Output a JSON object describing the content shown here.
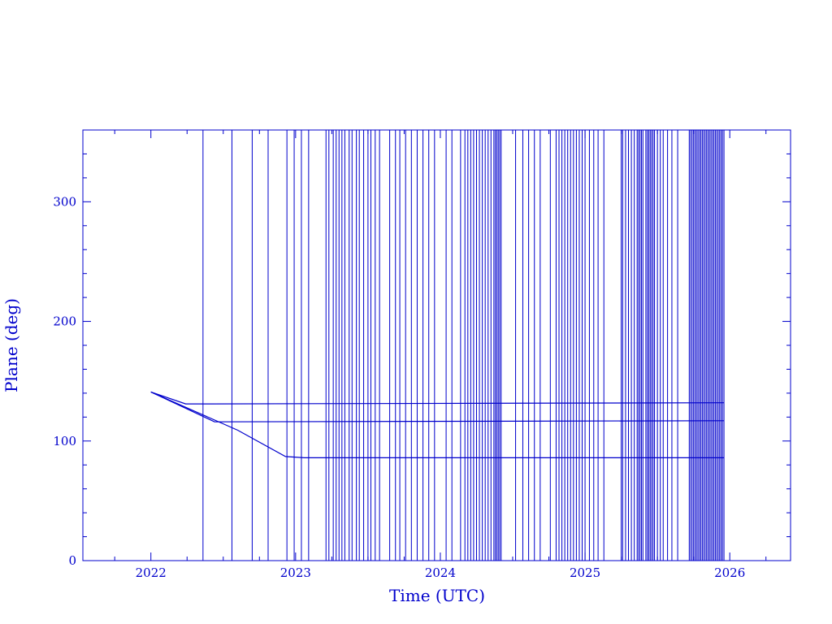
{
  "chart_data": {
    "type": "line",
    "title": "",
    "xlabel": "Time (UTC)",
    "ylabel": "Plane (deg)",
    "xlim": [
      2021.53,
      2026.42
    ],
    "ylim": [
      0,
      360
    ],
    "x_ticks": [
      2022,
      2023,
      2024,
      2025,
      2026
    ],
    "y_ticks": [
      0,
      100,
      200,
      300
    ],
    "x_tick_labels": [
      "2022",
      "2023",
      "2024",
      "2025",
      "2026"
    ],
    "y_tick_labels": [
      "0",
      "100",
      "200",
      "300"
    ],
    "grid": false,
    "legend": "none",
    "color": "#0000cc",
    "series": [
      {
        "values": [
          [
            2022.0,
            141
          ],
          [
            2022.24,
            131
          ],
          [
            2022.42,
            131
          ],
          [
            2025.96,
            132
          ]
        ]
      },
      {
        "values": [
          [
            2022.0,
            141
          ],
          [
            2022.44,
            116
          ],
          [
            2025.96,
            117
          ]
        ]
      },
      {
        "values": [
          [
            2022.0,
            141
          ],
          [
            2022.6,
            109
          ],
          [
            2022.93,
            87
          ],
          [
            2023.06,
            86
          ],
          [
            2025.96,
            86
          ]
        ]
      }
    ],
    "wrap_crossings_x": [
      2022.36,
      2022.56,
      2022.7,
      2022.81,
      2022.94,
      2022.99,
      2023.04,
      2023.09,
      2023.21,
      2023.23,
      2023.26,
      2023.28,
      2023.3,
      2023.32,
      2023.34,
      2023.37,
      2023.39,
      2023.42,
      2023.44,
      2023.47,
      2023.5,
      2023.52,
      2023.55,
      2023.58,
      2023.65,
      2023.69,
      2023.72,
      2023.76,
      2023.8,
      2023.84,
      2023.88,
      2023.92,
      2023.96,
      2024.04,
      2024.08,
      2024.14,
      2024.17,
      2024.19,
      2024.21,
      2024.23,
      2024.25,
      2024.27,
      2024.29,
      2024.31,
      2024.33,
      2024.35,
      2024.37,
      2024.38,
      2024.39,
      2024.4,
      2024.41,
      2024.42,
      2024.52,
      2024.57,
      2024.61,
      2024.65,
      2024.69,
      2024.76,
      2024.8,
      2024.82,
      2024.84,
      2024.86,
      2024.88,
      2024.9,
      2024.92,
      2024.94,
      2024.96,
      2024.98,
      2025.0,
      2025.03,
      2025.06,
      2025.09,
      2025.13,
      2025.25,
      2025.26,
      2025.28,
      2025.3,
      2025.32,
      2025.34,
      2025.36,
      2025.37,
      2025.38,
      2025.39,
      2025.4,
      2025.42,
      2025.43,
      2025.44,
      2025.45,
      2025.46,
      2025.47,
      2025.48,
      2025.5,
      2025.52,
      2025.54,
      2025.57,
      2025.6,
      2025.64,
      2025.72,
      2025.73,
      2025.74,
      2025.75,
      2025.76,
      2025.77,
      2025.78,
      2025.79,
      2025.8,
      2025.81,
      2025.82,
      2025.83,
      2025.84,
      2025.85,
      2025.86,
      2025.87,
      2025.88,
      2025.89,
      2025.9,
      2025.91,
      2025.92,
      2025.93,
      2025.94,
      2025.95,
      2025.96
    ]
  }
}
